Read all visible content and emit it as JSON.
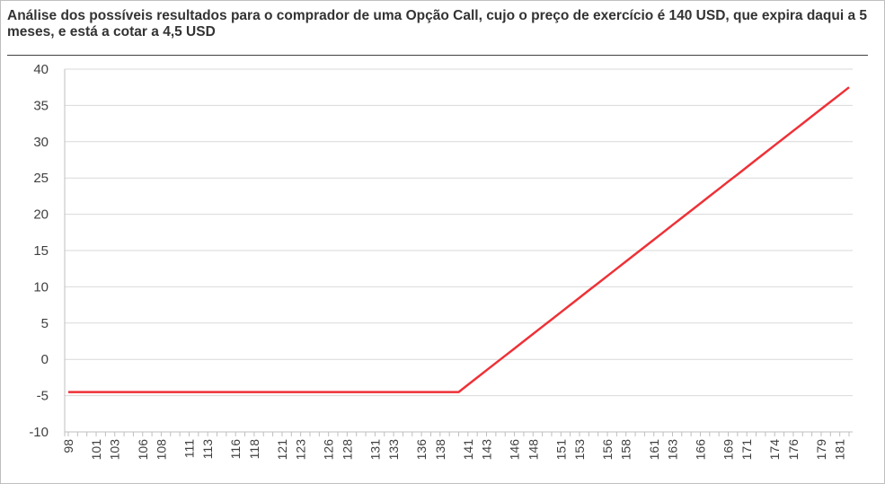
{
  "title": "Análise  dos possíveis resultados para o comprador de uma Opção Call, cujo o preço de exercício é 140 USD, que expira daqui a 5 meses, e está a cotar a 4,5 USD",
  "chart_data": {
    "type": "line",
    "title": "Análise  dos possíveis resultados para o comprador de uma Opção Call, cujo o preço de exercício é 140 USD, que expira daqui a 5 meses, e está a cotar a 4,5 USD",
    "xlabel": "",
    "ylabel": "",
    "ylim": [
      -10,
      40
    ],
    "yticks": [
      -10,
      -5,
      0,
      5,
      10,
      15,
      20,
      25,
      30,
      35,
      40
    ],
    "x": [
      98,
      99,
      100,
      101,
      102,
      103,
      104,
      105,
      106,
      107,
      108,
      109,
      110,
      111,
      112,
      113,
      114,
      115,
      116,
      117,
      118,
      119,
      120,
      121,
      122,
      123,
      124,
      125,
      126,
      127,
      128,
      129,
      130,
      131,
      132,
      133,
      134,
      135,
      136,
      137,
      138,
      139,
      140,
      141,
      142,
      143,
      144,
      145,
      146,
      147,
      148,
      149,
      150,
      151,
      152,
      153,
      154,
      155,
      156,
      157,
      158,
      159,
      160,
      161,
      162,
      163,
      164,
      165,
      166,
      167,
      168,
      169,
      170,
      171,
      172,
      173,
      174,
      175,
      176,
      177,
      178,
      179,
      180,
      181,
      182
    ],
    "xtick_labels": [
      "98",
      "101",
      "103",
      "106",
      "108",
      "111",
      "113",
      "116",
      "118",
      "121",
      "123",
      "126",
      "128",
      "131",
      "133",
      "136",
      "138",
      "141",
      "143",
      "146",
      "148",
      "151",
      "153",
      "156",
      "158",
      "161",
      "163",
      "166",
      "169",
      "171",
      "174",
      "176",
      "179",
      "181"
    ],
    "series": [
      {
        "color": "#ee3137",
        "strike": 140,
        "premium": 4.5,
        "values": [
          -4.5,
          -4.5,
          -4.5,
          -4.5,
          -4.5,
          -4.5,
          -4.5,
          -4.5,
          -4.5,
          -4.5,
          -4.5,
          -4.5,
          -4.5,
          -4.5,
          -4.5,
          -4.5,
          -4.5,
          -4.5,
          -4.5,
          -4.5,
          -4.5,
          -4.5,
          -4.5,
          -4.5,
          -4.5,
          -4.5,
          -4.5,
          -4.5,
          -4.5,
          -4.5,
          -4.5,
          -4.5,
          -4.5,
          -4.5,
          -4.5,
          -4.5,
          -4.5,
          -4.5,
          -4.5,
          -4.5,
          -4.5,
          -4.5,
          -4.5,
          -3.5,
          -2.5,
          -1.5,
          -0.5,
          0.5,
          1.5,
          2.5,
          3.5,
          4.5,
          5.5,
          6.5,
          7.5,
          8.5,
          9.5,
          10.5,
          11.5,
          12.5,
          13.5,
          14.5,
          15.5,
          16.5,
          17.5,
          18.5,
          19.5,
          20.5,
          21.5,
          22.5,
          23.5,
          24.5,
          25.5,
          26.5,
          27.5,
          28.5,
          29.5,
          30.5,
          31.5,
          32.5,
          33.5,
          34.5,
          35.5,
          36.5,
          37.5
        ]
      }
    ],
    "grid": true,
    "legend": "none"
  }
}
